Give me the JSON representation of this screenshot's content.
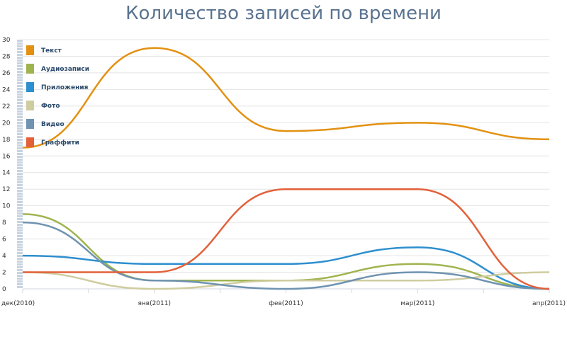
{
  "chart_data": {
    "type": "line",
    "title": "Количество записей по времени",
    "categories": [
      "дек(2010)",
      "янв(2011)",
      "фев(2011)",
      "мар(2011)",
      "апр(2011)"
    ],
    "ylim": [
      0,
      30
    ],
    "yticks": [
      0,
      2,
      4,
      6,
      8,
      10,
      12,
      14,
      16,
      18,
      20,
      22,
      24,
      26,
      28,
      30
    ],
    "grid": true,
    "legend": "top-left",
    "series": [
      {
        "name": "Текст",
        "color": "#e39112",
        "values": [
          17,
          29,
          19,
          20,
          18
        ]
      },
      {
        "name": "Аудиозаписи",
        "color": "#9fb44f",
        "values": [
          9,
          1,
          1,
          3,
          0
        ]
      },
      {
        "name": "Приложения",
        "color": "#2e8fce",
        "values": [
          4,
          3,
          3,
          5,
          0
        ]
      },
      {
        "name": "Фото",
        "color": "#cfcca0",
        "values": [
          2,
          0,
          1,
          1,
          2
        ]
      },
      {
        "name": "Видео",
        "color": "#6f93b1",
        "values": [
          8,
          1,
          0,
          2,
          0
        ]
      },
      {
        "name": "Граффити",
        "color": "#e2613a",
        "values": [
          2,
          2,
          12,
          12,
          0
        ]
      }
    ]
  }
}
